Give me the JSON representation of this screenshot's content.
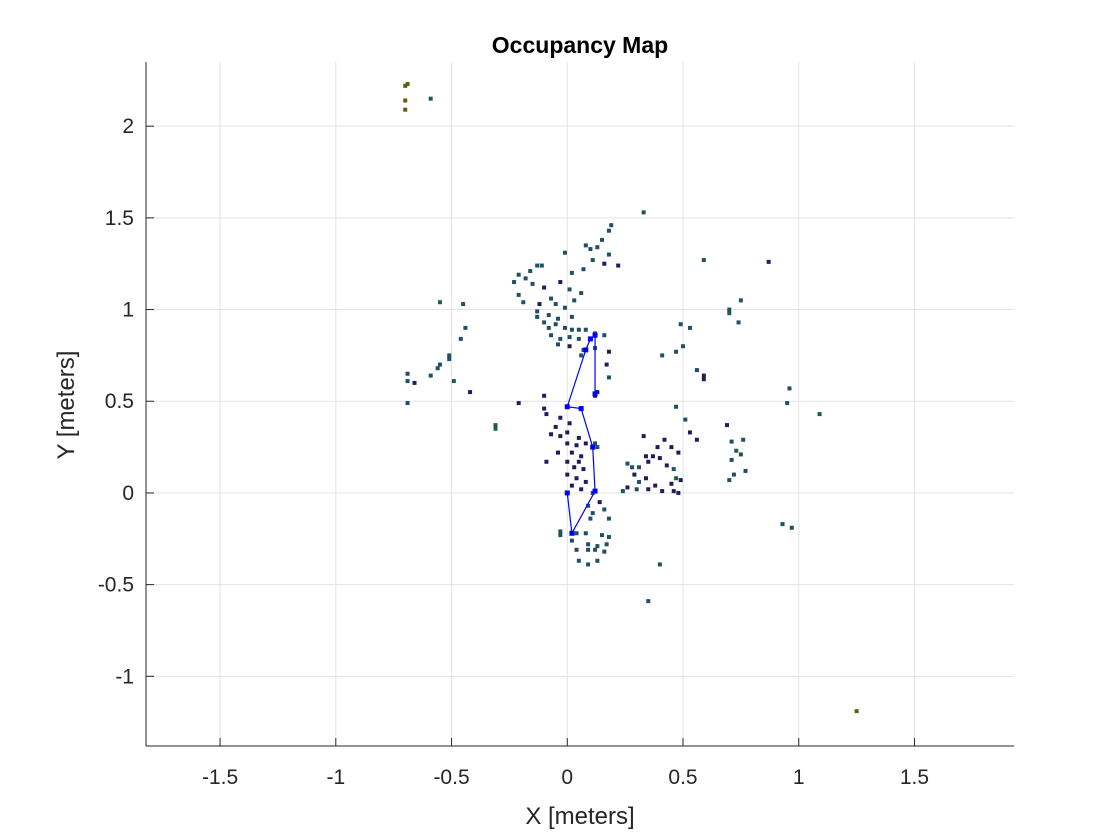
{
  "chart_data": {
    "type": "scatter",
    "title": "Occupancy Map",
    "xlabel": "X [meters]",
    "ylabel": "Y [meters]",
    "xlim": [
      -1.82,
      1.93
    ],
    "ylim": [
      -1.38,
      2.35
    ],
    "xticks": [
      -1.5,
      -1,
      -0.5,
      0,
      0.5,
      1,
      1.5
    ],
    "xtick_labels": [
      "-1.5",
      "-1",
      "-0.5",
      "0",
      "0.5",
      "1",
      "1.5"
    ],
    "yticks": [
      -1,
      -0.5,
      0,
      0.5,
      1,
      1.5,
      2
    ],
    "ytick_labels": [
      "-1",
      "-0.5",
      "0",
      "0.5",
      "1",
      "1.5",
      "2"
    ],
    "grid": true,
    "colors": {
      "grid": "#e3e3e3",
      "axis": "#262626",
      "path": "#0000ff",
      "occ_dark": "#1f1d5e",
      "occ_teal": "#1f5063",
      "occ_green": "#225e44",
      "occ_olive": "#5e5e10"
    },
    "occupied_cells": [
      {
        "x": -0.7,
        "y": 2.22,
        "c": "occ_olive"
      },
      {
        "x": -0.69,
        "y": 2.23,
        "c": "occ_olive"
      },
      {
        "x": -0.7,
        "y": 2.14,
        "c": "occ_olive"
      },
      {
        "x": -0.7,
        "y": 2.09,
        "c": "occ_olive"
      },
      {
        "x": -0.59,
        "y": 2.15,
        "c": "occ_teal"
      },
      {
        "x": 1.25,
        "y": -1.19,
        "c": "occ_olive"
      },
      {
        "x": 0.33,
        "y": 1.53,
        "c": "occ_teal"
      },
      {
        "x": 0.19,
        "y": 1.46,
        "c": "occ_teal"
      },
      {
        "x": 0.18,
        "y": 1.43,
        "c": "occ_teal"
      },
      {
        "x": 0.15,
        "y": 1.38,
        "c": "occ_teal"
      },
      {
        "x": 0.13,
        "y": 1.34,
        "c": "occ_teal"
      },
      {
        "x": 0.1,
        "y": 1.33,
        "c": "occ_teal"
      },
      {
        "x": 0.08,
        "y": 1.35,
        "c": "occ_teal"
      },
      {
        "x": 0.18,
        "y": 1.3,
        "c": "occ_teal"
      },
      {
        "x": -0.01,
        "y": 1.31,
        "c": "occ_teal"
      },
      {
        "x": 0.11,
        "y": 1.27,
        "c": "occ_teal"
      },
      {
        "x": 0.16,
        "y": 1.25,
        "c": "occ_dark"
      },
      {
        "x": 0.22,
        "y": 1.24,
        "c": "occ_dark"
      },
      {
        "x": 0.07,
        "y": 1.22,
        "c": "occ_teal"
      },
      {
        "x": 0.02,
        "y": 1.2,
        "c": "occ_teal"
      },
      {
        "x": -0.11,
        "y": 1.24,
        "c": "occ_teal"
      },
      {
        "x": -0.13,
        "y": 1.24,
        "c": "occ_teal"
      },
      {
        "x": -0.16,
        "y": 1.21,
        "c": "occ_teal"
      },
      {
        "x": -0.21,
        "y": 1.19,
        "c": "occ_teal"
      },
      {
        "x": -0.18,
        "y": 1.17,
        "c": "occ_teal"
      },
      {
        "x": -0.23,
        "y": 1.15,
        "c": "occ_teal"
      },
      {
        "x": -0.15,
        "y": 1.14,
        "c": "occ_teal"
      },
      {
        "x": -0.1,
        "y": 1.12,
        "c": "occ_dark"
      },
      {
        "x": -0.03,
        "y": 1.15,
        "c": "occ_dark"
      },
      {
        "x": 0.01,
        "y": 1.11,
        "c": "occ_teal"
      },
      {
        "x": 0.06,
        "y": 1.09,
        "c": "occ_teal"
      },
      {
        "x": -0.07,
        "y": 1.06,
        "c": "occ_teal"
      },
      {
        "x": -0.21,
        "y": 1.08,
        "c": "occ_teal"
      },
      {
        "x": -0.19,
        "y": 1.04,
        "c": "occ_teal"
      },
      {
        "x": -0.12,
        "y": 1.03,
        "c": "occ_dark"
      },
      {
        "x": -0.05,
        "y": 1.03,
        "c": "occ_teal"
      },
      {
        "x": 0.03,
        "y": 1.05,
        "c": "occ_teal"
      },
      {
        "x": -0.01,
        "y": 1.01,
        "c": "occ_teal"
      },
      {
        "x": -0.13,
        "y": 0.99,
        "c": "occ_teal"
      },
      {
        "x": -0.08,
        "y": 0.97,
        "c": "occ_teal"
      },
      {
        "x": -0.13,
        "y": 0.96,
        "c": "occ_teal"
      },
      {
        "x": -0.04,
        "y": 0.95,
        "c": "occ_teal"
      },
      {
        "x": 0.02,
        "y": 0.96,
        "c": "occ_teal"
      },
      {
        "x": -0.1,
        "y": 0.93,
        "c": "occ_teal"
      },
      {
        "x": -0.08,
        "y": 0.9,
        "c": "occ_teal"
      },
      {
        "x": -0.05,
        "y": 0.92,
        "c": "occ_teal"
      },
      {
        "x": -0.01,
        "y": 0.9,
        "c": "occ_teal"
      },
      {
        "x": 0.02,
        "y": 0.89,
        "c": "occ_teal"
      },
      {
        "x": 0.05,
        "y": 0.89,
        "c": "occ_teal"
      },
      {
        "x": 0.08,
        "y": 0.89,
        "c": "occ_teal"
      },
      {
        "x": 0.12,
        "y": 0.87,
        "c": "occ_teal"
      },
      {
        "x": 0.16,
        "y": 0.86,
        "c": "occ_teal"
      },
      {
        "x": -0.07,
        "y": 0.86,
        "c": "occ_teal"
      },
      {
        "x": -0.03,
        "y": 0.84,
        "c": "occ_teal"
      },
      {
        "x": 0.01,
        "y": 0.85,
        "c": "occ_teal"
      },
      {
        "x": 0.05,
        "y": 0.84,
        "c": "occ_teal"
      },
      {
        "x": -0.04,
        "y": 0.81,
        "c": "occ_teal"
      },
      {
        "x": 0.01,
        "y": 0.8,
        "c": "occ_dark"
      },
      {
        "x": 0.07,
        "y": 0.78,
        "c": "occ_teal"
      },
      {
        "x": 0.12,
        "y": 0.79,
        "c": "occ_teal"
      },
      {
        "x": 0.18,
        "y": 0.77,
        "c": "occ_dark"
      },
      {
        "x": 0.06,
        "y": 0.75,
        "c": "occ_teal"
      },
      {
        "x": 0.17,
        "y": 0.7,
        "c": "occ_dark"
      },
      {
        "x": 0.18,
        "y": 0.63,
        "c": "occ_teal"
      },
      {
        "x": 0.12,
        "y": 0.53,
        "c": "occ_dark"
      },
      {
        "x": 0.13,
        "y": 0.55,
        "c": "occ_dark"
      },
      {
        "x": -0.55,
        "y": 1.04,
        "c": "occ_green"
      },
      {
        "x": -0.45,
        "y": 1.03,
        "c": "occ_teal"
      },
      {
        "x": -0.44,
        "y": 0.9,
        "c": "occ_teal"
      },
      {
        "x": -0.46,
        "y": 0.84,
        "c": "occ_teal"
      },
      {
        "x": -0.51,
        "y": 0.75,
        "c": "occ_teal"
      },
      {
        "x": -0.51,
        "y": 0.73,
        "c": "occ_teal"
      },
      {
        "x": -0.55,
        "y": 0.7,
        "c": "occ_teal"
      },
      {
        "x": -0.56,
        "y": 0.68,
        "c": "occ_teal"
      },
      {
        "x": -0.59,
        "y": 0.64,
        "c": "occ_teal"
      },
      {
        "x": -0.69,
        "y": 0.65,
        "c": "occ_teal"
      },
      {
        "x": -0.69,
        "y": 0.61,
        "c": "occ_teal"
      },
      {
        "x": -0.66,
        "y": 0.6,
        "c": "occ_dark"
      },
      {
        "x": -0.49,
        "y": 0.61,
        "c": "occ_green"
      },
      {
        "x": -0.42,
        "y": 0.55,
        "c": "occ_dark"
      },
      {
        "x": -0.69,
        "y": 0.49,
        "c": "occ_teal"
      },
      {
        "x": -0.31,
        "y": 0.37,
        "c": "occ_green"
      },
      {
        "x": -0.31,
        "y": 0.35,
        "c": "occ_green"
      },
      {
        "x": -0.21,
        "y": 0.49,
        "c": "occ_dark"
      },
      {
        "x": 0.59,
        "y": 1.27,
        "c": "occ_teal"
      },
      {
        "x": 0.87,
        "y": 1.26,
        "c": "occ_dark"
      },
      {
        "x": 0.75,
        "y": 1.05,
        "c": "occ_teal"
      },
      {
        "x": 0.7,
        "y": 1.0,
        "c": "occ_teal"
      },
      {
        "x": 0.7,
        "y": 0.98,
        "c": "occ_green"
      },
      {
        "x": 0.74,
        "y": 0.93,
        "c": "occ_teal"
      },
      {
        "x": 0.49,
        "y": 0.92,
        "c": "occ_teal"
      },
      {
        "x": 0.53,
        "y": 0.9,
        "c": "occ_teal"
      },
      {
        "x": 0.5,
        "y": 0.8,
        "c": "occ_teal"
      },
      {
        "x": 0.47,
        "y": 0.77,
        "c": "occ_teal"
      },
      {
        "x": 0.41,
        "y": 0.75,
        "c": "occ_teal"
      },
      {
        "x": 0.56,
        "y": 0.67,
        "c": "occ_teal"
      },
      {
        "x": 0.59,
        "y": 0.64,
        "c": "occ_dark"
      },
      {
        "x": 0.59,
        "y": 0.62,
        "c": "occ_dark"
      },
      {
        "x": 0.96,
        "y": 0.57,
        "c": "occ_teal"
      },
      {
        "x": 0.95,
        "y": 0.49,
        "c": "occ_teal"
      },
      {
        "x": 1.09,
        "y": 0.43,
        "c": "occ_teal"
      },
      {
        "x": 0.47,
        "y": 0.47,
        "c": "occ_teal"
      },
      {
        "x": 0.51,
        "y": 0.4,
        "c": "occ_teal"
      },
      {
        "x": 0.69,
        "y": 0.37,
        "c": "occ_dark"
      },
      {
        "x": 0.53,
        "y": 0.33,
        "c": "occ_dark"
      },
      {
        "x": 0.56,
        "y": 0.29,
        "c": "occ_dark"
      },
      {
        "x": 0.76,
        "y": 0.29,
        "c": "occ_teal"
      },
      {
        "x": 0.71,
        "y": 0.28,
        "c": "occ_teal"
      },
      {
        "x": 0.73,
        "y": 0.23,
        "c": "occ_green"
      },
      {
        "x": 0.75,
        "y": 0.21,
        "c": "occ_teal"
      },
      {
        "x": 0.71,
        "y": 0.18,
        "c": "occ_teal"
      },
      {
        "x": 0.77,
        "y": 0.12,
        "c": "occ_teal"
      },
      {
        "x": 0.72,
        "y": 0.1,
        "c": "occ_teal"
      },
      {
        "x": 0.7,
        "y": 0.07,
        "c": "occ_teal"
      },
      {
        "x": 0.93,
        "y": -0.17,
        "c": "occ_teal"
      },
      {
        "x": 0.97,
        "y": -0.19,
        "c": "occ_teal"
      },
      {
        "x": 0.33,
        "y": 0.31,
        "c": "occ_dark"
      },
      {
        "x": 0.42,
        "y": 0.29,
        "c": "occ_dark"
      },
      {
        "x": 0.39,
        "y": 0.25,
        "c": "occ_dark"
      },
      {
        "x": 0.45,
        "y": 0.25,
        "c": "occ_dark"
      },
      {
        "x": 0.34,
        "y": 0.2,
        "c": "occ_dark"
      },
      {
        "x": 0.37,
        "y": 0.2,
        "c": "occ_dark"
      },
      {
        "x": 0.4,
        "y": 0.19,
        "c": "occ_dark"
      },
      {
        "x": 0.48,
        "y": 0.22,
        "c": "occ_dark"
      },
      {
        "x": 0.26,
        "y": 0.16,
        "c": "occ_teal"
      },
      {
        "x": 0.28,
        "y": 0.14,
        "c": "occ_teal"
      },
      {
        "x": 0.31,
        "y": 0.14,
        "c": "occ_teal"
      },
      {
        "x": 0.35,
        "y": 0.17,
        "c": "occ_dark"
      },
      {
        "x": 0.43,
        "y": 0.15,
        "c": "occ_dark"
      },
      {
        "x": 0.46,
        "y": 0.13,
        "c": "occ_teal"
      },
      {
        "x": 0.29,
        "y": 0.1,
        "c": "occ_dark"
      },
      {
        "x": 0.34,
        "y": 0.08,
        "c": "occ_dark"
      },
      {
        "x": 0.47,
        "y": 0.08,
        "c": "occ_green"
      },
      {
        "x": 0.31,
        "y": 0.06,
        "c": "occ_teal"
      },
      {
        "x": 0.38,
        "y": 0.04,
        "c": "occ_dark"
      },
      {
        "x": 0.45,
        "y": 0.05,
        "c": "occ_dark"
      },
      {
        "x": 0.49,
        "y": 0.07,
        "c": "occ_dark"
      },
      {
        "x": 0.26,
        "y": 0.03,
        "c": "occ_dark"
      },
      {
        "x": 0.3,
        "y": 0.02,
        "c": "occ_teal"
      },
      {
        "x": 0.35,
        "y": 0.02,
        "c": "occ_dark"
      },
      {
        "x": 0.41,
        "y": 0.01,
        "c": "occ_dark"
      },
      {
        "x": 0.46,
        "y": 0.01,
        "c": "occ_dark"
      },
      {
        "x": 0.24,
        "y": 0.01,
        "c": "occ_teal"
      },
      {
        "x": 0.48,
        "y": 0.0,
        "c": "occ_dark"
      },
      {
        "x": -0.1,
        "y": 0.53,
        "c": "occ_dark"
      },
      {
        "x": -0.1,
        "y": 0.46,
        "c": "occ_dark"
      },
      {
        "x": -0.09,
        "y": 0.43,
        "c": "occ_dark"
      },
      {
        "x": -0.03,
        "y": 0.41,
        "c": "occ_dark"
      },
      {
        "x": -0.05,
        "y": 0.36,
        "c": "occ_dark"
      },
      {
        "x": 0.01,
        "y": 0.38,
        "c": "occ_dark"
      },
      {
        "x": -0.07,
        "y": 0.32,
        "c": "occ_dark"
      },
      {
        "x": 0.0,
        "y": 0.33,
        "c": "occ_dark"
      },
      {
        "x": -0.03,
        "y": 0.31,
        "c": "occ_dark"
      },
      {
        "x": 0.05,
        "y": 0.3,
        "c": "occ_dark"
      },
      {
        "x": 0.0,
        "y": 0.27,
        "c": "occ_dark"
      },
      {
        "x": 0.04,
        "y": 0.26,
        "c": "occ_dark"
      },
      {
        "x": 0.08,
        "y": 0.27,
        "c": "occ_dark"
      },
      {
        "x": 0.12,
        "y": 0.27,
        "c": "occ_teal"
      },
      {
        "x": 0.13,
        "y": 0.25,
        "c": "occ_teal"
      },
      {
        "x": -0.04,
        "y": 0.22,
        "c": "occ_dark"
      },
      {
        "x": 0.02,
        "y": 0.22,
        "c": "occ_dark"
      },
      {
        "x": 0.06,
        "y": 0.2,
        "c": "occ_dark"
      },
      {
        "x": 0.0,
        "y": 0.17,
        "c": "occ_dark"
      },
      {
        "x": 0.05,
        "y": 0.17,
        "c": "occ_dark"
      },
      {
        "x": 0.03,
        "y": 0.14,
        "c": "occ_dark"
      },
      {
        "x": 0.07,
        "y": 0.13,
        "c": "occ_dark"
      },
      {
        "x": -0.09,
        "y": 0.17,
        "c": "occ_dark"
      },
      {
        "x": 0.0,
        "y": 0.1,
        "c": "occ_dark"
      },
      {
        "x": 0.04,
        "y": 0.08,
        "c": "occ_dark"
      },
      {
        "x": 0.08,
        "y": 0.06,
        "c": "occ_dark"
      },
      {
        "x": 0.02,
        "y": 0.04,
        "c": "occ_dark"
      },
      {
        "x": 0.06,
        "y": 0.02,
        "c": "occ_dark"
      },
      {
        "x": 0.12,
        "y": 0.01,
        "c": "occ_teal"
      },
      {
        "x": 0.11,
        "y": 0.0,
        "c": "occ_teal"
      },
      {
        "x": 0.14,
        "y": -0.05,
        "c": "occ_dark"
      },
      {
        "x": 0.09,
        "y": -0.07,
        "c": "occ_teal"
      },
      {
        "x": 0.16,
        "y": -0.09,
        "c": "occ_teal"
      },
      {
        "x": 0.11,
        "y": -0.11,
        "c": "occ_teal"
      },
      {
        "x": 0.1,
        "y": -0.14,
        "c": "occ_teal"
      },
      {
        "x": 0.18,
        "y": -0.14,
        "c": "occ_teal"
      },
      {
        "x": -0.03,
        "y": -0.21,
        "c": "occ_teal"
      },
      {
        "x": -0.03,
        "y": -0.23,
        "c": "occ_teal"
      },
      {
        "x": 0.04,
        "y": -0.22,
        "c": "occ_teal"
      },
      {
        "x": 0.08,
        "y": -0.22,
        "c": "occ_teal"
      },
      {
        "x": 0.15,
        "y": -0.23,
        "c": "occ_teal"
      },
      {
        "x": 0.18,
        "y": -0.24,
        "c": "occ_teal"
      },
      {
        "x": 0.02,
        "y": -0.26,
        "c": "occ_teal"
      },
      {
        "x": 0.09,
        "y": -0.28,
        "c": "occ_teal"
      },
      {
        "x": 0.13,
        "y": -0.29,
        "c": "occ_teal"
      },
      {
        "x": 0.17,
        "y": -0.28,
        "c": "occ_teal"
      },
      {
        "x": 0.04,
        "y": -0.31,
        "c": "occ_teal"
      },
      {
        "x": 0.09,
        "y": -0.31,
        "c": "occ_teal"
      },
      {
        "x": 0.12,
        "y": -0.31,
        "c": "occ_teal"
      },
      {
        "x": 0.16,
        "y": -0.32,
        "c": "occ_teal"
      },
      {
        "x": 0.05,
        "y": -0.37,
        "c": "occ_teal"
      },
      {
        "x": 0.09,
        "y": -0.39,
        "c": "occ_teal"
      },
      {
        "x": 0.13,
        "y": -0.37,
        "c": "occ_teal"
      },
      {
        "x": 0.4,
        "y": -0.39,
        "c": "occ_teal"
      },
      {
        "x": 0.35,
        "y": -0.59,
        "c": "occ_teal"
      }
    ],
    "series": [
      {
        "points": [
          {
            "x": 0.0,
            "y": 0.0
          },
          {
            "x": 0.02,
            "y": -0.22
          },
          {
            "x": 0.12,
            "y": 0.01
          },
          {
            "x": 0.11,
            "y": 0.25
          },
          {
            "x": 0.06,
            "y": 0.46
          },
          {
            "x": 0.0,
            "y": 0.47
          },
          {
            "x": 0.08,
            "y": 0.78
          },
          {
            "x": 0.1,
            "y": 0.84
          },
          {
            "x": 0.12,
            "y": 0.86
          },
          {
            "x": 0.12,
            "y": 0.54
          }
        ]
      }
    ]
  }
}
